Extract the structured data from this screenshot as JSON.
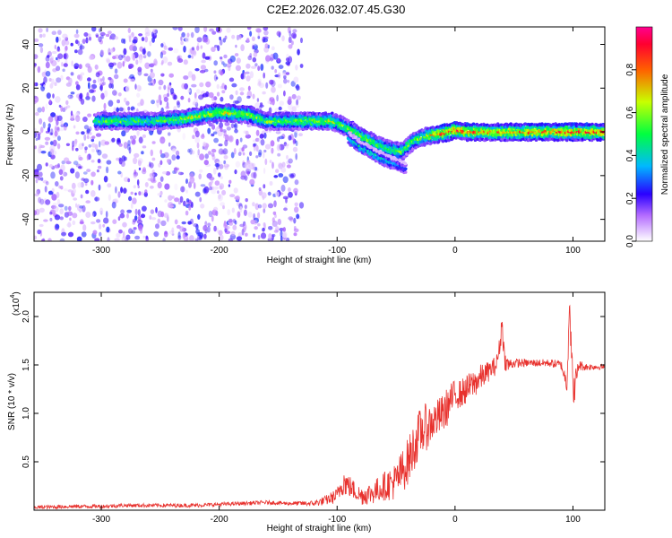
{
  "title": "C2E2.2026.032.07.45.G30",
  "chart_data": [
    {
      "type": "heatmap",
      "xlabel": "Height of straight line (km)",
      "ylabel": "Frequency (Hz)",
      "xlim": [
        -357,
        127
      ],
      "ylim": [
        -50,
        48
      ],
      "xticks": [
        -300,
        -200,
        -100,
        0,
        100
      ],
      "xtick_labels": [
        "-300",
        "-200",
        "-100",
        "0",
        "100"
      ],
      "yticks": [
        -40,
        -20,
        0,
        20,
        40
      ],
      "ytick_labels": [
        "-40",
        "-20",
        "0",
        "20",
        "40"
      ],
      "colorbar": {
        "label": "Normalized spectral amplitude",
        "range": [
          0,
          1
        ],
        "ticks": [
          0.0,
          0.2,
          0.4,
          0.6,
          0.8
        ],
        "tick_labels": [
          "0.0",
          "0.2",
          "0.4",
          "0.6",
          "0.8"
        ],
        "colors": [
          "#ffffff",
          "#9a3cff",
          "#0000ff",
          "#00ffff",
          "#00ff00",
          "#ffff00",
          "#ff0000",
          "#ff0090"
        ]
      },
      "noise_region": {
        "x_range": [
          -357,
          -130
        ],
        "y_range": [
          -50,
          48
        ],
        "amplitude": 0.15
      },
      "ridge": {
        "x": [
          -305,
          -280,
          -255,
          -230,
          -200,
          -175,
          -160,
          -140,
          -120,
          -105,
          -95,
          -85,
          -75,
          -65,
          -55,
          -45,
          -35,
          -25,
          -15,
          -5,
          0,
          10,
          20,
          40,
          60,
          80,
          100,
          127
        ],
        "y": [
          5,
          5,
          5,
          6,
          9,
          8,
          5,
          5,
          5,
          5,
          3,
          0,
          -3,
          -6,
          -8,
          -9,
          -4,
          -2,
          -1,
          0,
          1,
          0,
          0,
          0,
          0,
          0,
          0,
          0
        ],
        "amplitude": [
          0.5,
          0.55,
          0.5,
          0.6,
          0.65,
          0.6,
          0.55,
          0.55,
          0.6,
          0.6,
          0.55,
          0.55,
          0.6,
          0.55,
          0.5,
          0.55,
          0.55,
          0.6,
          0.75,
          0.8,
          0.85,
          0.8,
          0.75,
          0.75,
          0.75,
          0.8,
          0.8,
          0.8
        ]
      },
      "secondary_ridge": {
        "x": [
          -90,
          -80,
          -70,
          -60,
          -50,
          -42
        ],
        "y": [
          -3,
          -7,
          -10,
          -13,
          -15,
          -17
        ],
        "amplitude": [
          0.4,
          0.45,
          0.45,
          0.4,
          0.35,
          0.3
        ]
      }
    },
    {
      "type": "line",
      "xlabel": "Height of straight line (km)",
      "ylabel": "SNR (10 * v/v)",
      "y_multiplier_label": "(x10",
      "y_multiplier_exp": "4",
      "y_multiplier_close": ")",
      "xlim": [
        -357,
        127
      ],
      "ylim": [
        0,
        2.25
      ],
      "xticks": [
        -300,
        -200,
        -100,
        0,
        100
      ],
      "xtick_labels": [
        "-300",
        "-200",
        "-100",
        "0",
        "100"
      ],
      "yticks": [
        0.5,
        1.0,
        1.5,
        2.0
      ],
      "ytick_labels": [
        "0.5",
        "1.0",
        "1.5",
        "2.0"
      ],
      "series": [
        {
          "color": "#e8322e",
          "x": [
            -357,
            -320,
            -300,
            -280,
            -250,
            -220,
            -200,
            -180,
            -160,
            -140,
            -120,
            -110,
            -100,
            -95,
            -90,
            -85,
            -80,
            -70,
            -60,
            -50,
            -40,
            -35,
            -30,
            -25,
            -20,
            -15,
            -10,
            -5,
            0,
            5,
            10,
            15,
            20,
            25,
            30,
            35,
            38,
            40,
            42,
            45,
            50,
            60,
            70,
            80,
            90,
            95,
            97,
            100,
            105,
            110,
            120,
            127
          ],
          "y": [
            0.03,
            0.04,
            0.04,
            0.05,
            0.05,
            0.05,
            0.06,
            0.07,
            0.08,
            0.07,
            0.07,
            0.1,
            0.15,
            0.3,
            0.25,
            0.2,
            0.15,
            0.18,
            0.25,
            0.3,
            0.5,
            0.65,
            0.8,
            0.85,
            0.9,
            0.95,
            1.0,
            1.1,
            1.2,
            1.2,
            1.25,
            1.3,
            1.35,
            1.4,
            1.45,
            1.5,
            1.7,
            1.95,
            1.55,
            1.5,
            1.52,
            1.52,
            1.52,
            1.52,
            1.5,
            1.3,
            2.2,
            1.2,
            1.5,
            1.48,
            1.48,
            1.48
          ],
          "noise_amplitude": [
            0.02,
            0.02,
            0.02,
            0.02,
            0.02,
            0.02,
            0.02,
            0.02,
            0.02,
            0.02,
            0.03,
            0.05,
            0.08,
            0.15,
            0.12,
            0.1,
            0.1,
            0.12,
            0.15,
            0.2,
            0.25,
            0.25,
            0.25,
            0.25,
            0.2,
            0.2,
            0.2,
            0.2,
            0.15,
            0.15,
            0.15,
            0.15,
            0.15,
            0.12,
            0.1,
            0.1,
            0.1,
            0.15,
            0.1,
            0.08,
            0.05,
            0.04,
            0.04,
            0.04,
            0.05,
            0.1,
            0.2,
            0.2,
            0.06,
            0.04,
            0.03,
            0.03
          ]
        }
      ]
    }
  ]
}
